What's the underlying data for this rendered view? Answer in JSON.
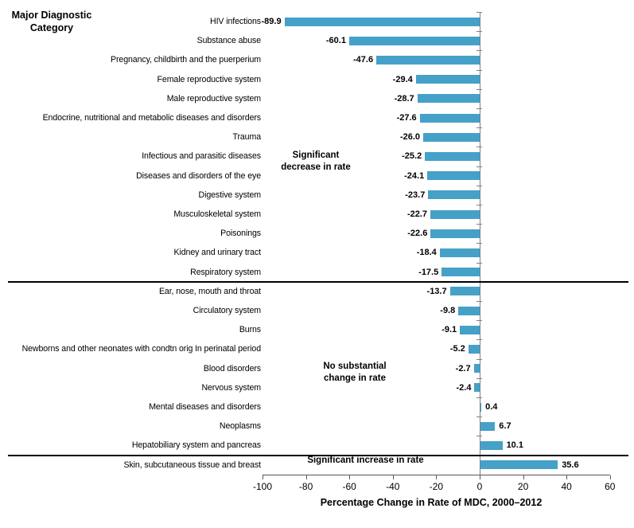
{
  "colors": {
    "bar": "#45a1c8",
    "category_axis_line": "#808080",
    "value_axis_line": "#595959",
    "divider": "#000000",
    "text": "#000000"
  },
  "chart_data": {
    "type": "bar",
    "orientation": "horizontal",
    "title": "Major Diagnostic Category",
    "xlabel": "Percentage Change in Rate of MDC, 2000–2012",
    "xlim": [
      -100,
      60
    ],
    "xticks": [
      -100,
      -80,
      -60,
      -40,
      -20,
      0,
      20,
      40,
      60
    ],
    "grid": false,
    "legend": false,
    "categories": [
      "HIV infections",
      "Substance abuse",
      "Pregnancy, childbirth and the puerperium",
      "Female reproductive system",
      "Male reproductive system",
      "Endocrine, nutritional and metabolic diseases and disorders",
      "Trauma",
      "Infectious and parasitic diseases",
      "Diseases and disorders of the eye",
      "Digestive system",
      "Musculoskeletal system",
      "Poisonings",
      "Kidney and urinary tract",
      "Respiratory system",
      "Ear, nose, mouth and throat",
      "Circulatory system",
      "Burns",
      "Newborns and other neonates with condtn orig In perinatal period",
      "Blood disorders",
      "Nervous system",
      "Mental diseases and disorders",
      "Neoplasms",
      "Hepatobiliary system and pancreas",
      "Skin, subcutaneous tissue and breast"
    ],
    "values": [
      -89.9,
      -60.1,
      -47.6,
      -29.4,
      -28.7,
      -27.6,
      -26.0,
      -25.2,
      -24.1,
      -23.7,
      -22.7,
      -22.6,
      -18.4,
      -17.5,
      -13.7,
      -9.8,
      -9.1,
      -5.2,
      -2.7,
      -2.4,
      0.4,
      6.7,
      10.1,
      35.6
    ],
    "value_labels": [
      "-89.9",
      "-60.1",
      "-47.6",
      "-29.4",
      "-28.7",
      "-27.6",
      "-26.0",
      "-25.2",
      "-24.1",
      "-23.7",
      "-22.7",
      "-22.6",
      "-18.4",
      "-17.5",
      "-13.7",
      "-9.8",
      "-9.1",
      "-5.2",
      "-2.7",
      "-2.4",
      "0.4",
      "6.7",
      "10.1",
      "35.6"
    ],
    "groups": [
      {
        "label": "Significant decrease in rate",
        "label_lines": [
          "Significant",
          "decrease in rate"
        ],
        "category_count": 14
      },
      {
        "label": "No substantial change in rate",
        "label_lines": [
          "No substantial",
          "change in rate"
        ],
        "category_count": 9
      },
      {
        "label": "Significant increase in rate",
        "label_lines": [
          "Significant increase in rate"
        ],
        "category_count": 1
      }
    ]
  }
}
